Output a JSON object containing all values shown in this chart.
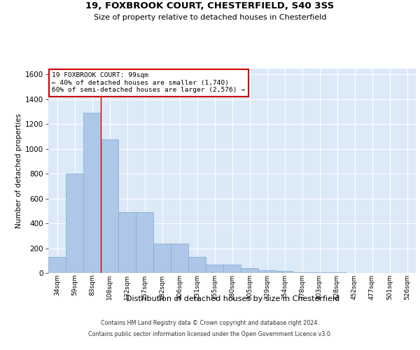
{
  "title_line1": "19, FOXBROOK COURT, CHESTERFIELD, S40 3SS",
  "title_line2": "Size of property relative to detached houses in Chesterfield",
  "xlabel": "Distribution of detached houses by size in Chesterfield",
  "ylabel": "Number of detached properties",
  "categories": [
    "34sqm",
    "59sqm",
    "83sqm",
    "108sqm",
    "132sqm",
    "157sqm",
    "182sqm",
    "206sqm",
    "231sqm",
    "255sqm",
    "280sqm",
    "305sqm",
    "329sqm",
    "354sqm",
    "378sqm",
    "403sqm",
    "428sqm",
    "452sqm",
    "477sqm",
    "501sqm",
    "526sqm"
  ],
  "values": [
    130,
    800,
    1290,
    1080,
    490,
    490,
    235,
    235,
    130,
    70,
    65,
    40,
    25,
    15,
    5,
    5,
    3,
    2,
    2,
    1,
    1
  ],
  "bar_color": "#aec6e8",
  "bar_edge_color": "#7bafd4",
  "background_color": "#dce9f7",
  "grid_color": "#ffffff",
  "vline_x": 2.5,
  "vline_color": "#cc0000",
  "annotation_text": "19 FOXBROOK COURT: 99sqm\n← 40% of detached houses are smaller (1,740)\n60% of semi-detached houses are larger (2,576) →",
  "annotation_box_color": "#ffffff",
  "annotation_box_edge_color": "#cc0000",
  "footer_line1": "Contains HM Land Registry data © Crown copyright and database right 2024.",
  "footer_line2": "Contains public sector information licensed under the Open Government Licence v3.0.",
  "ylim": [
    0,
    1650
  ],
  "yticks": [
    0,
    200,
    400,
    600,
    800,
    1000,
    1200,
    1400,
    1600
  ]
}
